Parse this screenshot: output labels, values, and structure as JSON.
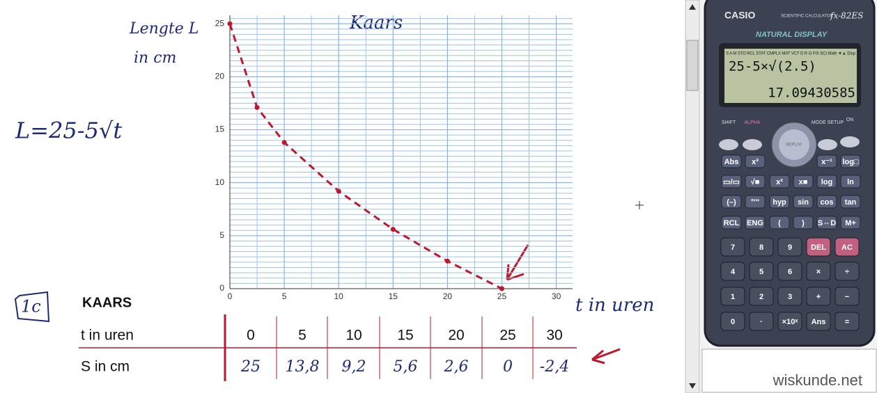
{
  "notes": {
    "y_axis_label": [
      "Lengte L",
      "in cm"
    ],
    "formula": "L=25-5√t",
    "x_axis_label": "t in uren",
    "exercise": "1c"
  },
  "chart_data": {
    "type": "line",
    "title": "Kaars",
    "x": [
      0,
      2.5,
      5,
      10,
      15,
      20,
      25
    ],
    "values": [
      25,
      17.1,
      13.8,
      9.2,
      5.6,
      2.6,
      0
    ],
    "color": "#c0162c",
    "xlim": [
      0,
      31.5
    ],
    "ylim": [
      0,
      25.8
    ],
    "xticks": [
      0,
      5,
      10,
      15,
      20,
      25,
      30
    ],
    "yticks": [
      0,
      5,
      10,
      15,
      20,
      25
    ],
    "grid": true
  },
  "table": {
    "title": "KAARS",
    "rows": [
      [
        "t in uren",
        "0",
        "5",
        "10",
        "15",
        "20",
        "25",
        "30"
      ],
      [
        "S in cm",
        "25",
        "13,8",
        "9,2",
        "5,6",
        "2,6",
        "0",
        "-2,4"
      ]
    ]
  },
  "calculator": {
    "brand": "CASIO",
    "subtitle": "SCIENTIFIC CALCULATOR",
    "model": "fx-82ES",
    "mode_label": "NATURAL DISPLAY",
    "indicators": "S A M STO RCL STAT CMPLX MAT VCT D R G FIX SCI Math ▼▲ Disp",
    "expression": "25-5×√(2.5)",
    "result": "17.09430585",
    "top_keys": [
      "SHIFT",
      "ALPHA",
      "REPLAY",
      "MODE SETUP",
      "ON"
    ],
    "function_keys": [
      [
        "Abs",
        "x³",
        "",
        "",
        "x⁻¹",
        "log□"
      ],
      [
        "▭/▭",
        "√■",
        "x²",
        "x■",
        "log",
        "ln"
      ],
      [
        "(–)",
        "°'\"",
        "hyp",
        "sin",
        "cos",
        "tan"
      ],
      [
        "RCL",
        "ENG",
        "(",
        ")",
        "S⇔D",
        "M+"
      ]
    ],
    "number_keys": [
      [
        "7",
        "8",
        "9",
        "DEL",
        "AC"
      ],
      [
        "4",
        "5",
        "6",
        "×",
        "÷"
      ],
      [
        "1",
        "2",
        "3",
        "+",
        "−"
      ],
      [
        "0",
        "·",
        "×10ˣ",
        "Ans",
        "="
      ]
    ]
  },
  "site": "wiskunde.net"
}
